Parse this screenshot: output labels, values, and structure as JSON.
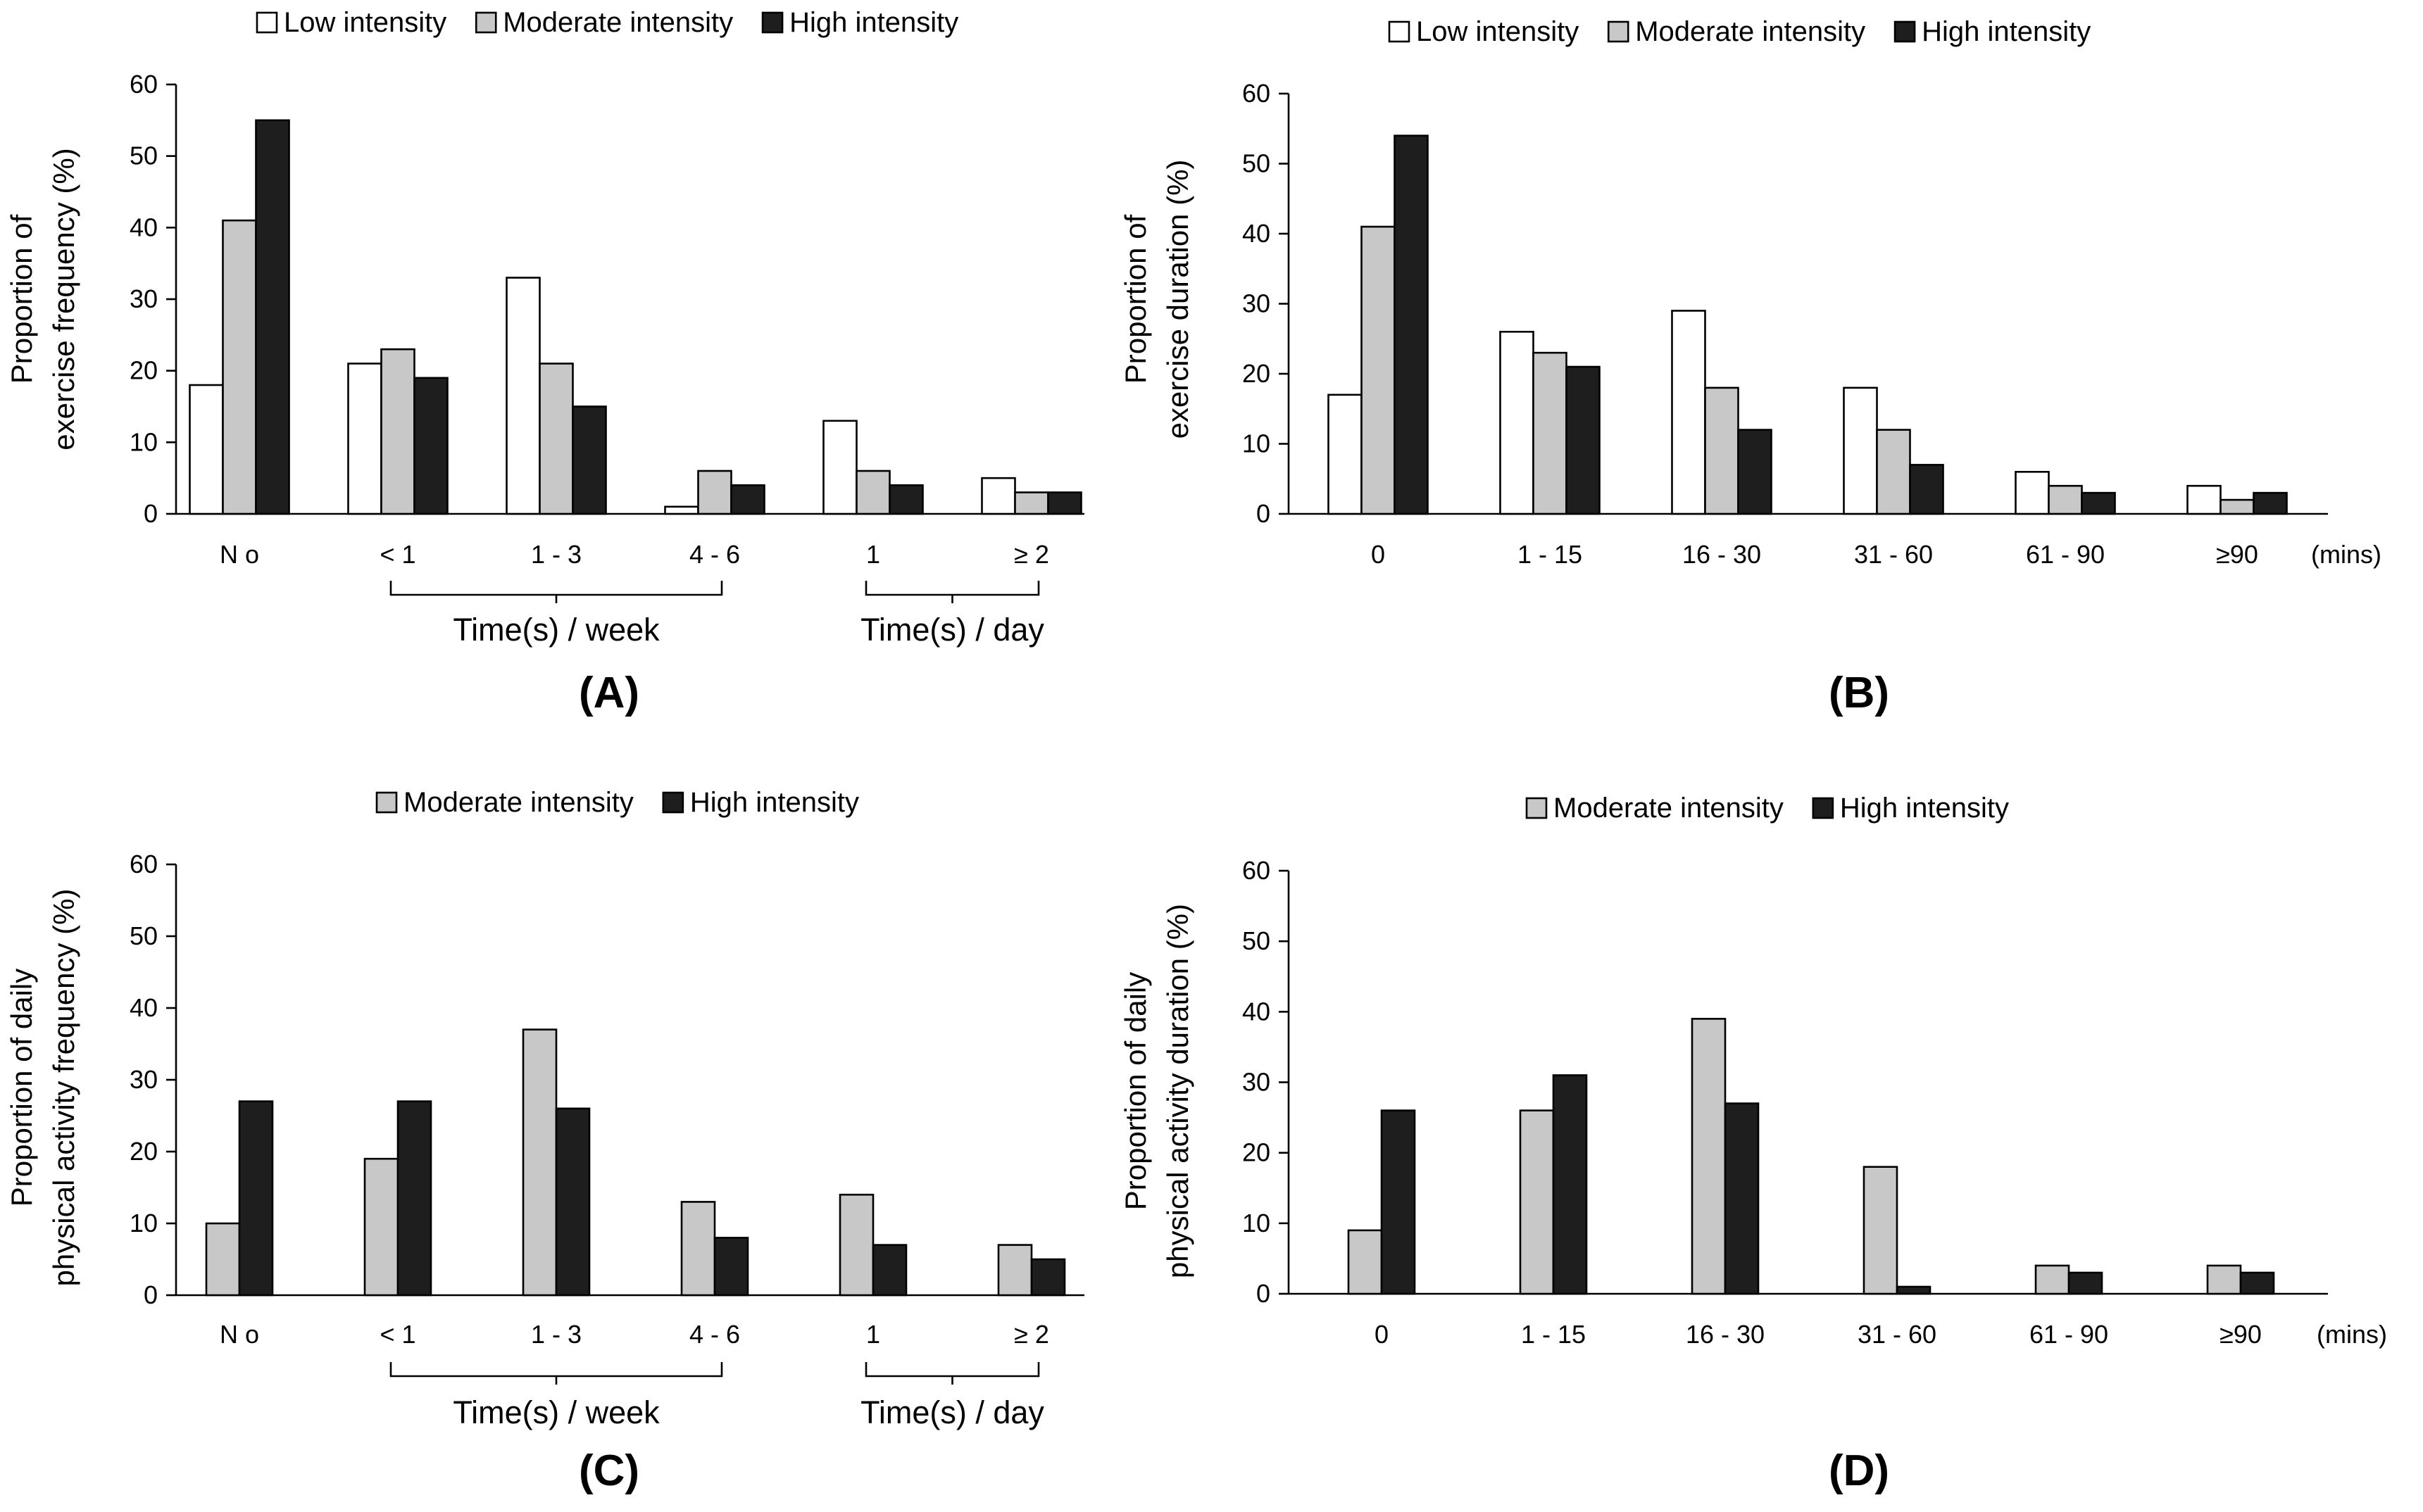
{
  "colors": {
    "Low intensity": "#ffffff",
    "Moderate intensity": "#c8c8c8",
    "High intensity": "#1e1e1e"
  },
  "chart_data": [
    {
      "id": "A",
      "type": "bar",
      "panel_label": "(A)",
      "ylabel": [
        "Proportion of",
        "exercise frequency (%)"
      ],
      "ylim": [
        0,
        60
      ],
      "yticks": [
        0,
        10,
        20,
        30,
        40,
        50,
        60
      ],
      "categories": [
        "N o",
        "< 1",
        "1 - 3",
        "4 - 6",
        "1",
        "≥ 2"
      ],
      "unit_label": "",
      "group_labels": [
        {
          "text": "Time(s) / week",
          "from": 1,
          "to": 3
        },
        {
          "text": "Time(s) / day",
          "from": 4,
          "to": 5
        }
      ],
      "legend": [
        "Low intensity",
        "Moderate intensity",
        "High intensity"
      ],
      "series": [
        {
          "name": "Low intensity",
          "values": [
            18,
            21,
            33,
            1,
            13,
            5
          ]
        },
        {
          "name": "Moderate intensity",
          "values": [
            41,
            23,
            21,
            6,
            6,
            3
          ]
        },
        {
          "name": "High intensity",
          "values": [
            55,
            19,
            15,
            4,
            4,
            3
          ]
        }
      ]
    },
    {
      "id": "B",
      "type": "bar",
      "panel_label": "(B)",
      "ylabel": [
        "Proportion of",
        "exercise duration (%)"
      ],
      "ylim": [
        0,
        60
      ],
      "yticks": [
        0,
        10,
        20,
        30,
        40,
        50,
        60
      ],
      "categories": [
        "0",
        "1 - 15",
        "16 - 30",
        "31 - 60",
        "61 - 90",
        "≥90"
      ],
      "unit_label": "(mins)",
      "group_labels": [],
      "legend": [
        "Low intensity",
        "Moderate intensity",
        "High intensity"
      ],
      "series": [
        {
          "name": "Low intensity",
          "values": [
            17,
            26,
            29,
            18,
            6,
            4
          ]
        },
        {
          "name": "Moderate intensity",
          "values": [
            41,
            23,
            18,
            12,
            4,
            2
          ]
        },
        {
          "name": "High intensity",
          "values": [
            54,
            21,
            12,
            7,
            3,
            3
          ]
        }
      ]
    },
    {
      "id": "C",
      "type": "bar",
      "panel_label": "(C)",
      "ylabel": [
        "Proportion of daily",
        "physical activity frequency (%)"
      ],
      "ylim": [
        0,
        60
      ],
      "yticks": [
        0,
        10,
        20,
        30,
        40,
        50,
        60
      ],
      "categories": [
        "N o",
        "< 1",
        "1 - 3",
        "4 - 6",
        "1",
        "≥ 2"
      ],
      "unit_label": "",
      "group_labels": [
        {
          "text": "Time(s) / week",
          "from": 1,
          "to": 3
        },
        {
          "text": "Time(s) / day",
          "from": 4,
          "to": 5
        }
      ],
      "legend": [
        "Moderate intensity",
        "High intensity"
      ],
      "series": [
        {
          "name": "Moderate intensity",
          "values": [
            10,
            19,
            37,
            13,
            14,
            7
          ]
        },
        {
          "name": "High intensity",
          "values": [
            27,
            27,
            26,
            8,
            7,
            5
          ]
        }
      ]
    },
    {
      "id": "D",
      "type": "bar",
      "panel_label": "(D)",
      "ylabel": [
        "Proportion of daily",
        "physical activity duration (%)"
      ],
      "ylim": [
        0,
        60
      ],
      "yticks": [
        0,
        10,
        20,
        30,
        40,
        50,
        60
      ],
      "categories": [
        "0",
        "1 - 15",
        "16 - 30",
        "31 - 60",
        "61 - 90",
        "≥90"
      ],
      "unit_label": "(mins)",
      "group_labels": [],
      "legend": [
        "Moderate intensity",
        "High intensity"
      ],
      "series": [
        {
          "name": "Moderate intensity",
          "values": [
            9,
            26,
            39,
            18,
            4,
            4
          ]
        },
        {
          "name": "High intensity",
          "values": [
            26,
            31,
            27,
            1,
            3,
            3
          ]
        }
      ]
    }
  ]
}
